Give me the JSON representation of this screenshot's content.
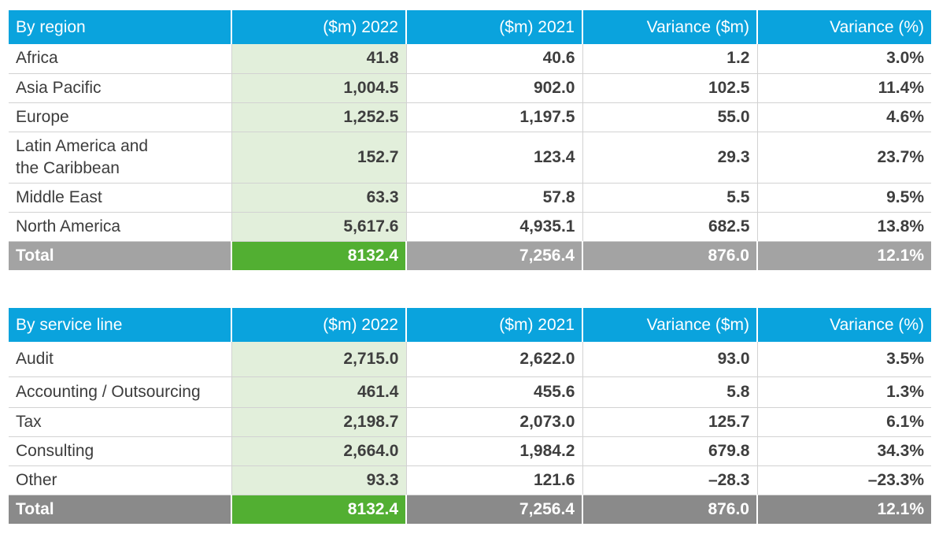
{
  "region_table": {
    "headers": [
      "By region",
      "($m) 2022",
      "($m) 2021",
      "Variance ($m)",
      "Variance (%)"
    ],
    "rows": [
      {
        "label": "Africa",
        "v2022": "41.8",
        "v2021": "40.6",
        "var_m": "1.2",
        "var_pct": "3.0%"
      },
      {
        "label": "Asia Pacific",
        "v2022": "1,004.5",
        "v2021": "902.0",
        "var_m": "102.5",
        "var_pct": "11.4%"
      },
      {
        "label": "Europe",
        "v2022": "1,252.5",
        "v2021": "1,197.5",
        "var_m": "55.0",
        "var_pct": "4.6%"
      },
      {
        "label_line1": "Latin America and",
        "label_line2": "the Caribbean",
        "v2022": "152.7",
        "v2021": "123.4",
        "var_m": "29.3",
        "var_pct": "23.7%"
      },
      {
        "label": "Middle East",
        "v2022": "63.3",
        "v2021": "57.8",
        "var_m": "5.5",
        "var_pct": "9.5%"
      },
      {
        "label": "North America",
        "v2022": "5,617.6",
        "v2021": "4,935.1",
        "var_m": "682.5",
        "var_pct": "13.8%"
      }
    ],
    "total": {
      "label": "Total",
      "v2022": "8132.4",
      "v2021": "7,256.4",
      "var_m": "876.0",
      "var_pct": "12.1%"
    }
  },
  "service_table": {
    "headers": [
      "By service line",
      "($m) 2022",
      "($m) 2021",
      "Variance ($m)",
      "Variance (%)"
    ],
    "rows": [
      {
        "label": "Audit",
        "v2022": "2,715.0",
        "v2021": "2,622.0",
        "var_m": "93.0",
        "var_pct": "3.5%"
      },
      {
        "label": "Accounting / Outsourcing",
        "v2022": "461.4",
        "v2021": "455.6",
        "var_m": "5.8",
        "var_pct": "1.3%"
      },
      {
        "label": "Tax",
        "v2022": "2,198.7",
        "v2021": "2,073.0",
        "var_m": "125.7",
        "var_pct": "6.1%"
      },
      {
        "label": "Consulting",
        "v2022": "2,664.0",
        "v2021": "1,984.2",
        "var_m": "679.8",
        "var_pct": "34.3%"
      },
      {
        "label": "Other",
        "v2022": "93.3",
        "v2021": "121.6",
        "var_m": "–28.3",
        "var_pct": "–23.3%"
      }
    ],
    "total": {
      "label": "Total",
      "v2022": "8132.4",
      "v2021": "7,256.4",
      "var_m": "876.0",
      "var_pct": "12.1%"
    }
  },
  "colors": {
    "header_blue": "#0aa3dd",
    "highlight_green": "#e2efdb",
    "total_green": "#52af32",
    "total_grey": "#a3a3a3"
  }
}
